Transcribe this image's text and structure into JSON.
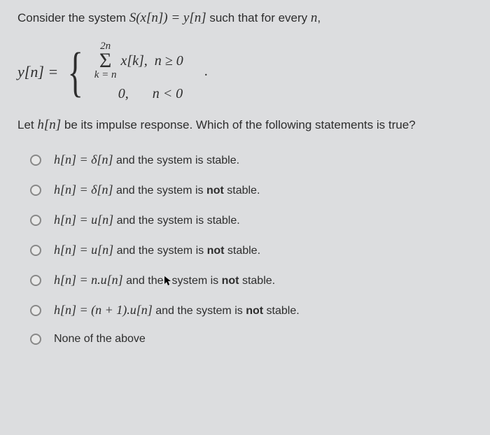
{
  "colors": {
    "background": "#dcdddf",
    "text": "#2d2d2d",
    "radio_border": "#888"
  },
  "typography": {
    "body_font": "Segoe UI, Arial",
    "math_font": "Times New Roman",
    "body_size": 17,
    "math_size": 19
  },
  "prompt": {
    "prefix": "Consider the system ",
    "system_expr": "S(x[n]) = y[n]",
    "middle": " such that for every ",
    "var": "n",
    "suffix": ","
  },
  "equation": {
    "lhs": "y[n] =",
    "case1": {
      "sum_upper": "2n",
      "sum_lower": "k = n",
      "body": "x[k],",
      "cond": "n ≥ 0"
    },
    "case2": {
      "body": "0,",
      "cond": "n < 0"
    },
    "trail_dot": "."
  },
  "let": {
    "prefix": "Let ",
    "hn": "h[n]",
    "rest": " be its impulse response. Which of the following statements is true?"
  },
  "options": [
    {
      "expr": "h[n] = δ[n]",
      "text_before": " and the system is stable.",
      "bold_word": "",
      "text_after": ""
    },
    {
      "expr": "h[n] = δ[n]",
      "text_before": " and the system is ",
      "bold_word": "not",
      "text_after": " stable."
    },
    {
      "expr": "h[n] = u[n]",
      "text_before": " and the system is stable.",
      "bold_word": "",
      "text_after": ""
    },
    {
      "expr": "h[n] = u[n]",
      "text_before": " and the system is ",
      "bold_word": "not",
      "text_after": " stable."
    },
    {
      "expr": "h[n] = n.u[n]",
      "text_before": " and the",
      "cursor": true,
      "text_mid": "system is ",
      "bold_word": "not",
      "text_after": " stable."
    },
    {
      "expr": "h[n] = (n + 1).u[n]",
      "text_before": " and the system is ",
      "bold_word": "not",
      "text_after": " stable."
    },
    {
      "expr": "",
      "text_before": "None of the above",
      "bold_word": "",
      "text_after": ""
    }
  ]
}
